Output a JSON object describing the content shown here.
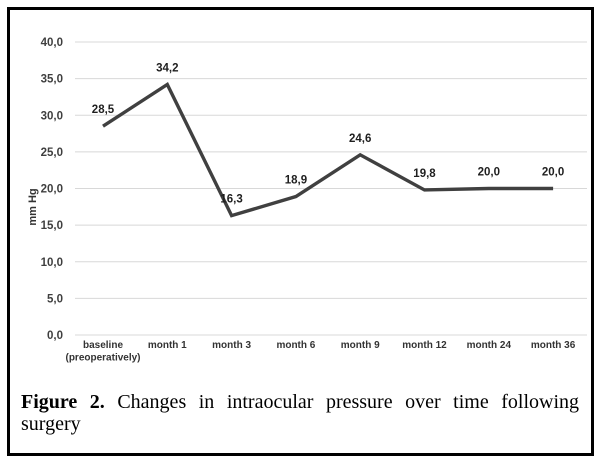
{
  "figure": {
    "caption_prefix": "Figure 2.",
    "caption_text": "Changes in intraocular pressure over time following surgery"
  },
  "chart_data": {
    "type": "line",
    "title": "",
    "xlabel": "",
    "ylabel": "mm Hg",
    "categories": [
      "baseline (preoperatively)",
      "month 1",
      "month 3",
      "month 6",
      "month 9",
      "month 12",
      "month 24",
      "month 36"
    ],
    "category_label_lines": [
      [
        "baseline",
        "(preoperatively)"
      ],
      [
        "month 1"
      ],
      [
        "month 3"
      ],
      [
        "month 6"
      ],
      [
        "month 9"
      ],
      [
        "month 12"
      ],
      [
        "month 24"
      ],
      [
        "month 36"
      ]
    ],
    "series": [
      {
        "name": "intraocular pressure",
        "values": [
          28.5,
          34.2,
          16.3,
          18.9,
          24.6,
          19.8,
          20.0,
          20.0
        ],
        "value_labels": [
          "28,5",
          "34,2",
          "16,3",
          "18,9",
          "24,6",
          "19,8",
          "20,0",
          "20,0"
        ]
      }
    ],
    "ylim": [
      0,
      40
    ],
    "ytick_step": 5,
    "ytick_labels": [
      "0,0",
      "5,0",
      "10,0",
      "15,0",
      "20,0",
      "25,0",
      "30,0",
      "35,0",
      "40,0"
    ],
    "grid": "horizontal",
    "legend": "none",
    "decimal_separator": ",",
    "colors": {
      "line": "#404040",
      "gridline": "#d8d8d8",
      "tick_label": "#3f3f3f",
      "data_label": "#1f1f1f",
      "frame_border": "#000000",
      "background": "#ffffff"
    }
  }
}
